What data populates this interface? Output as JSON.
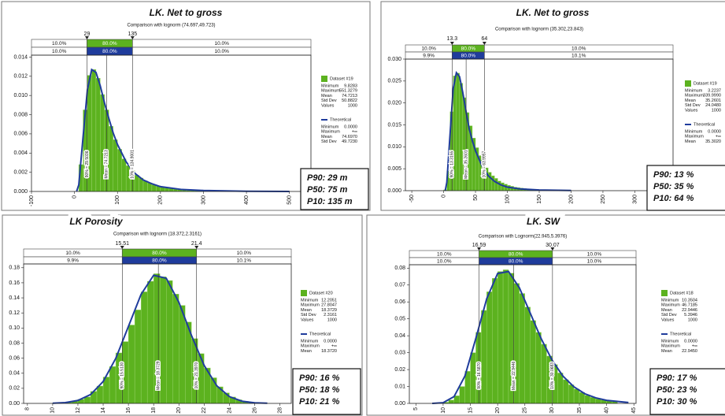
{
  "chart_data": [
    {
      "type": "histogram",
      "title": "LK. Net to gross",
      "subtitle": "Comparison with lognorm (74.697,49.723)",
      "xlim": [
        -100,
        550
      ],
      "xticks": [
        -100,
        0,
        100,
        200,
        300,
        400,
        500
      ],
      "ylim": [
        0,
        0.0142
      ],
      "yticks": [
        {
          "value": 0,
          "label": "0.000"
        },
        {
          "value": 0.002,
          "label": "0.002"
        },
        {
          "value": 0.004,
          "label": "0.004"
        },
        {
          "value": 0.006,
          "label": "0.006"
        },
        {
          "value": 0.008,
          "label": "0.008"
        },
        {
          "value": 0.01,
          "label": "0.010"
        },
        {
          "value": 0.012,
          "label": "0.012"
        },
        {
          "value": 0.014,
          "label": "0.014"
        }
      ],
      "percentile_markers": [
        29,
        135
      ],
      "percentile_rows": [
        {
          "color": "#5cb21f",
          "labels": [
            "10.0%",
            "80.0%",
            "10.0%"
          ]
        },
        {
          "color": "#1f3c9c",
          "labels": [
            "10.0%",
            "80.0%",
            "10.0%"
          ]
        }
      ],
      "reference_lines": [
        {
          "value": 29.5036,
          "label": "90% = 29.5036"
        },
        {
          "value": 74.7213,
          "label": "Mean = 74.7213"
        },
        {
          "value": 134.9001,
          "label": "10% = 134.9001"
        }
      ],
      "series": [
        {
          "name": "Dataset #19",
          "color": "#5cb21f",
          "bins": [
            0,
            10,
            20,
            30,
            40,
            50,
            60,
            70,
            80,
            90,
            100,
            110,
            120,
            130,
            140,
            150,
            160,
            170,
            180,
            190,
            200,
            210,
            220,
            230,
            240,
            250,
            260,
            270,
            280,
            290,
            300
          ],
          "values": [
            0.0,
            0.0028,
            0.0085,
            0.0121,
            0.0127,
            0.0118,
            0.0101,
            0.0085,
            0.0068,
            0.0054,
            0.0044,
            0.0034,
            0.0027,
            0.0022,
            0.0017,
            0.0014,
            0.0011,
            0.0009,
            0.0007,
            0.0006,
            0.0005,
            0.0004,
            0.0003,
            0.0003,
            0.0002,
            0.0002,
            0.0001,
            0.0001,
            0.0001,
            0.0001
          ],
          "stats": [
            [
              "Minimum",
              "9.8283"
            ],
            [
              "Maximum",
              "551.3279"
            ],
            [
              "Mean",
              "74.7213"
            ],
            [
              "Std Dev",
              "50.8822"
            ],
            [
              "Values",
              "1000"
            ]
          ]
        },
        {
          "name": "Theoretical",
          "color": "#1f3c9c",
          "x": [
            5,
            10,
            20,
            30,
            40,
            50,
            60,
            70,
            80,
            90,
            100,
            120,
            140,
            160,
            180,
            200,
            250,
            300,
            400,
            500
          ],
          "values": [
            2e-05,
            0.00069,
            0.0057,
            0.0106,
            0.0127,
            0.0124,
            0.011,
            0.0092,
            0.0076,
            0.0061,
            0.0049,
            0.0031,
            0.0019,
            0.0012,
            0.0008,
            0.0005,
            0.0002,
            0.0001,
            2e-05,
            5e-06
          ],
          "stats": [
            [
              "Minimum",
              "0.0000"
            ],
            [
              "Maximum",
              "+∞"
            ],
            [
              "Mean",
              "74.6970"
            ],
            [
              "Std Dev",
              "49.7230"
            ]
          ]
        }
      ],
      "summary": [
        "P90: 29 m",
        "P50: 75 m",
        "P10: 135 m"
      ]
    },
    {
      "type": "histogram",
      "title": "LK. Net to gross",
      "subtitle": "Comparison with lognorm (35.302,23.843)",
      "xlim": [
        -60,
        360
      ],
      "xticks": [
        -50,
        0,
        50,
        100,
        150,
        200,
        250,
        300,
        350
      ],
      "ylim": [
        0,
        0.03
      ],
      "yticks": [
        {
          "value": 0,
          "label": "0.000"
        },
        {
          "value": 0.005,
          "label": "0.005"
        },
        {
          "value": 0.01,
          "label": "0.010"
        },
        {
          "value": 0.015,
          "label": "0.015"
        },
        {
          "value": 0.02,
          "label": "0.020"
        },
        {
          "value": 0.025,
          "label": "0.025"
        },
        {
          "value": 0.03,
          "label": "0.030"
        }
      ],
      "percentile_markers": [
        13.3,
        64.0
      ],
      "percentile_rows": [
        {
          "color": "#5cb21f",
          "labels": [
            "10.0%",
            "80.0%",
            "10.0%"
          ]
        },
        {
          "color": "#1f3c9c",
          "labels": [
            "9.9%",
            "80.0%",
            "10.1%"
          ]
        }
      ],
      "reference_lines": [
        {
          "value": 13.3155,
          "label": "90% = 13.3155"
        },
        {
          "value": 35.2601,
          "label": "Mean = 35.2601"
        },
        {
          "value": 63.9957,
          "label": "10% = 63.9957"
        }
      ],
      "series": [
        {
          "name": "Dataset #19",
          "color": "#5cb21f",
          "bins": [
            0,
            5,
            10,
            15,
            20,
            25,
            30,
            35,
            40,
            45,
            50,
            55,
            60,
            65,
            70,
            75,
            80,
            85,
            90,
            95,
            100,
            105,
            110,
            115,
            120,
            125,
            130,
            135,
            140,
            145,
            150
          ],
          "values": [
            0.0002,
            0.0045,
            0.018,
            0.0262,
            0.0268,
            0.0245,
            0.0212,
            0.0178,
            0.0148,
            0.012,
            0.0098,
            0.008,
            0.0064,
            0.0052,
            0.0042,
            0.0034,
            0.0028,
            0.0022,
            0.0018,
            0.0015,
            0.0012,
            0.001,
            0.0008,
            0.0007,
            0.0006,
            0.0005,
            0.0004,
            0.0003,
            0.0003,
            0.0002
          ],
          "stats": [
            [
              "Minimum",
              "3.2237"
            ],
            [
              "Maximum",
              "339.9990"
            ],
            [
              "Mean",
              "35.2601"
            ],
            [
              "Std Dev",
              "24.0480"
            ],
            [
              "Values",
              "1000"
            ]
          ]
        },
        {
          "name": "Theoretical",
          "color": "#1f3c9c",
          "x": [
            2.5,
            5,
            10,
            15,
            20,
            25,
            30,
            35,
            40,
            45,
            50,
            60,
            70,
            80,
            90,
            100,
            120,
            150,
            200
          ],
          "values": [
            0,
            0.0019,
            0.0127,
            0.0233,
            0.0269,
            0.026,
            0.0224,
            0.0182,
            0.0142,
            0.0114,
            0.0091,
            0.0057,
            0.0034,
            0.0021,
            0.0013,
            0.0008,
            0.0004,
            0.00015,
            4e-05
          ],
          "stats": [
            [
              "Minimum",
              "0.0000"
            ],
            [
              "Maximum",
              "+∞"
            ],
            [
              "Mean",
              "35.3020"
            ]
          ]
        }
      ],
      "summary": [
        "P90: 13 %",
        "P50: 35 %",
        "P10: 64 %"
      ]
    },
    {
      "type": "histogram",
      "title": "LK Porosity",
      "subtitle": "Comparison with lognorm (18.372,2.3161)",
      "xlim": [
        7.7,
        28.9
      ],
      "xticks": [
        8,
        10,
        12,
        14,
        16,
        18,
        20,
        22,
        24,
        26,
        28
      ],
      "ylim": [
        0,
        0.185
      ],
      "yticks": [
        {
          "value": 0,
          "label": "0.00"
        },
        {
          "value": 0.02,
          "label": "0.02"
        },
        {
          "value": 0.04,
          "label": "0.04"
        },
        {
          "value": 0.06,
          "label": "0.06"
        },
        {
          "value": 0.08,
          "label": "0.08"
        },
        {
          "value": 0.1,
          "label": "0.10"
        },
        {
          "value": 0.12,
          "label": "0.12"
        },
        {
          "value": 0.14,
          "label": "0.14"
        },
        {
          "value": 0.16,
          "label": "0.16"
        },
        {
          "value": 0.18,
          "label": "0.18"
        }
      ],
      "percentile_markers": [
        15.51,
        21.4
      ],
      "percentile_rows": [
        {
          "color": "#5cb21f",
          "labels": [
            "10.0%",
            "80.0%",
            "10.0%"
          ]
        },
        {
          "color": "#1f3c9c",
          "labels": [
            "9.9%",
            "80.0%",
            "10.1%"
          ]
        }
      ],
      "reference_lines": [
        {
          "value": 15.513,
          "label": "90% = 15.5130"
        },
        {
          "value": 18.3729,
          "label": "Mean = 18.3729"
        },
        {
          "value": 21.397,
          "label": "10% = 21.3970"
        }
      ],
      "series": [
        {
          "name": "Dataset #20",
          "color": "#5cb21f",
          "bins": [
            11,
            11.5,
            12,
            12.5,
            13,
            13.5,
            14,
            14.5,
            15,
            15.5,
            16,
            16.5,
            17,
            17.5,
            18,
            18.5,
            19,
            19.5,
            20,
            20.5,
            21,
            21.5,
            22,
            22.5,
            23,
            23.5,
            24,
            24.5,
            25,
            25.5,
            26,
            26.5,
            27
          ],
          "values": [
            0.0017,
            0.0028,
            0.0055,
            0.0085,
            0.016,
            0.023,
            0.035,
            0.049,
            0.067,
            0.082,
            0.104,
            0.124,
            0.148,
            0.162,
            0.172,
            0.168,
            0.163,
            0.145,
            0.13,
            0.108,
            0.086,
            0.066,
            0.047,
            0.034,
            0.022,
            0.014,
            0.0085,
            0.0048,
            0.0028,
            0.0014,
            0.0007,
            0.0004
          ],
          "stats": [
            [
              "Minimum",
              "12.2051"
            ],
            [
              "Maximum",
              "27.8047"
            ],
            [
              "Mean",
              "18.3729"
            ],
            [
              "Std Dev",
              "2.3161"
            ],
            [
              "Values",
              "1000"
            ]
          ]
        },
        {
          "name": "Theoretical",
          "color": "#1f3c9c",
          "x": [
            10,
            11,
            12,
            13,
            14,
            15,
            16,
            17,
            18,
            19,
            20,
            21,
            22,
            23,
            24,
            25,
            26,
            27
          ],
          "values": [
            0.00025,
            0.0011,
            0.0039,
            0.0117,
            0.029,
            0.0597,
            0.102,
            0.1445,
            0.17,
            0.166,
            0.134,
            0.09,
            0.0504,
            0.0234,
            0.009,
            0.0029,
            0.0008,
            0.0002
          ],
          "stats": [
            [
              "Minimum",
              "0.0000"
            ],
            [
              "Maximum",
              "+∞"
            ],
            [
              "Mean",
              "18.3720"
            ]
          ]
        }
      ],
      "summary": [
        "P90: 16 %",
        "P50: 18 %",
        "P10: 21 %"
      ]
    },
    {
      "type": "histogram",
      "title": "LK. SW",
      "subtitle": "Comparison with Lognorm(22.945,5.3976)",
      "xlim": [
        3.8,
        45.4
      ],
      "xticks": [
        5,
        10,
        15,
        20,
        25,
        30,
        35,
        40,
        45
      ],
      "ylim": [
        0,
        0.082
      ],
      "yticks": [
        {
          "value": 0,
          "label": "0.00"
        },
        {
          "value": 0.01,
          "label": "0.01"
        },
        {
          "value": 0.02,
          "label": "0.02"
        },
        {
          "value": 0.03,
          "label": "0.03"
        },
        {
          "value": 0.04,
          "label": "0.04"
        },
        {
          "value": 0.05,
          "label": "0.05"
        },
        {
          "value": 0.06,
          "label": "0.06"
        },
        {
          "value": 0.07,
          "label": "0.07"
        },
        {
          "value": 0.08,
          "label": "0.08"
        }
      ],
      "percentile_markers": [
        16.59,
        30.07
      ],
      "percentile_rows": [
        {
          "color": "#5cb21f",
          "labels": [
            "10.0%",
            "80.0%",
            "10.0%"
          ]
        },
        {
          "color": "#1f3c9c",
          "labels": [
            "10.0%",
            "80.0%",
            "10.0%"
          ]
        }
      ],
      "reference_lines": [
        {
          "value": 16.587,
          "label": "90% = 16.5870"
        },
        {
          "value": 22.9446,
          "label": "Mean = 22.9446"
        },
        {
          "value": 30.0683,
          "label": "10% = 30.0683"
        }
      ],
      "series": [
        {
          "name": "Dataset #18",
          "color": "#5cb21f",
          "bins": [
            10,
            11,
            12,
            13,
            14,
            15,
            16,
            17,
            18,
            19,
            20,
            21,
            22,
            23,
            24,
            25,
            26,
            27,
            28,
            29,
            30,
            31,
            32,
            33,
            34,
            35,
            36,
            37,
            38,
            39,
            40,
            41,
            42
          ],
          "values": [
            0.0007,
            0.002,
            0.0045,
            0.01,
            0.019,
            0.03,
            0.042,
            0.055,
            0.066,
            0.074,
            0.078,
            0.079,
            0.077,
            0.071,
            0.065,
            0.057,
            0.049,
            0.042,
            0.035,
            0.028,
            0.023,
            0.018,
            0.014,
            0.011,
            0.0085,
            0.0065,
            0.0048,
            0.0036,
            0.0027,
            0.002,
            0.0015,
            0.0011
          ],
          "stats": [
            [
              "Minimum",
              "10.3504"
            ],
            [
              "Maximum",
              "46.7185"
            ],
            [
              "Mean",
              "22.9446"
            ],
            [
              "Std Dev",
              "5.3946"
            ],
            [
              "Values",
              "1000"
            ]
          ]
        },
        {
          "name": "Theoretical",
          "color": "#1f3c9c",
          "x": [
            8,
            10,
            12,
            14,
            16,
            18,
            20,
            22,
            24,
            26,
            28,
            30,
            32,
            34,
            36,
            38,
            40,
            44
          ],
          "values": [
            1e-05,
            0.00043,
            0.004,
            0.0162,
            0.0384,
            0.0619,
            0.0768,
            0.078,
            0.0683,
            0.0533,
            0.0382,
            0.0255,
            0.0161,
            0.0098,
            0.0057,
            0.0033,
            0.0018,
            0.00055
          ],
          "stats": [
            [
              "Minimum",
              "0.0000"
            ],
            [
              "Maximum",
              "+∞"
            ],
            [
              "Mean",
              "22.9450"
            ]
          ]
        }
      ],
      "summary": [
        "P90: 17 %",
        "P50: 23 %",
        "P10: 30 %"
      ]
    }
  ]
}
